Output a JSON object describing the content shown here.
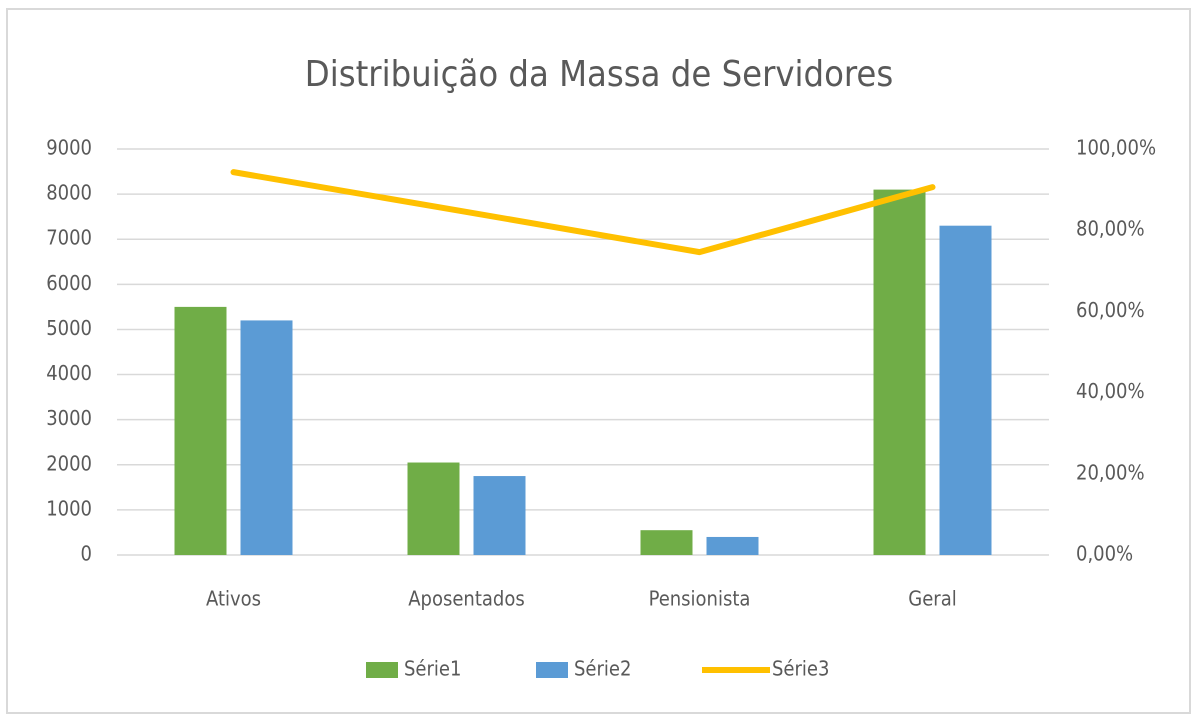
{
  "chart_data": {
    "type": "bar_line",
    "title": "Distribuição da Massa de Servidores",
    "categories": [
      "Ativos",
      "Aposentados",
      "Pensionista",
      "Geral"
    ],
    "series": [
      {
        "name": "Série1",
        "color": "#70ad47",
        "type": "bar",
        "values": [
          5500,
          2050,
          550,
          8100
        ]
      },
      {
        "name": "Série2",
        "color": "#5b9bd5",
        "type": "bar",
        "values": [
          5200,
          1750,
          400,
          7300
        ]
      },
      {
        "name": "Série3",
        "color": "#ffc000",
        "type": "line",
        "axis": "y2",
        "values": [
          94.3,
          84.5,
          74.6,
          90.6
        ]
      }
    ],
    "ylim": [
      0,
      9000
    ],
    "yticks": [
      0,
      1000,
      2000,
      3000,
      4000,
      5000,
      6000,
      7000,
      8000,
      9000
    ],
    "y2lim": [
      0,
      100
    ],
    "y2ticks": [
      {
        "value": 0,
        "label": "0,00%"
      },
      {
        "value": 20,
        "label": "20,00%"
      },
      {
        "value": 40,
        "label": "40,00%"
      },
      {
        "value": 60,
        "label": "60,00%"
      },
      {
        "value": 80,
        "label": "80,00%"
      },
      {
        "value": 100,
        "label": "100,00%"
      }
    ],
    "grid": true,
    "legend": "bottom"
  }
}
